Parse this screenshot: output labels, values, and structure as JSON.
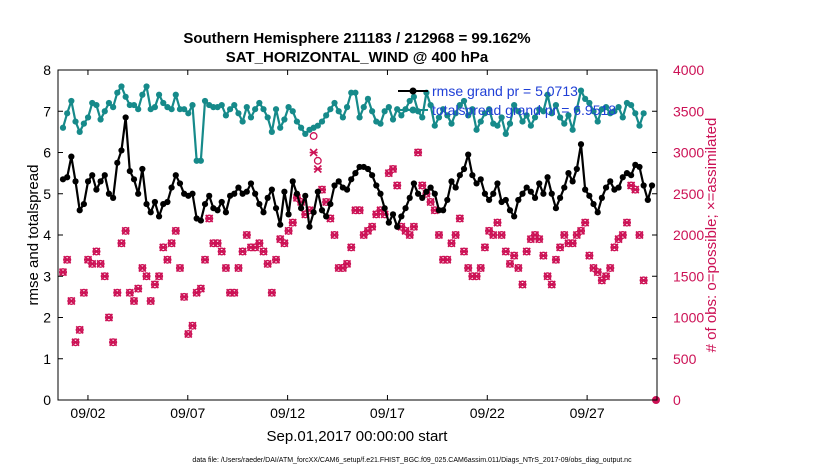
{
  "chart_data": {
    "type": "line",
    "title": "Southern Hemisphere 211183 / 212968 = 99.162%",
    "subtitle": "SAT_HORIZONTAL_WIND @ 400 hPa",
    "xlabel": "Sep.01,2017 00:00:00 start",
    "ylabel_left": "rmse and totalspread",
    "ylabel_right": "# of obs: o=possible; ×=assimilated",
    "footnote": "data file: /Users/raeder/DAI/ATM_forcXX/CAM6_setup/f.e21.FHIST_BGC.f09_025.CAM6assim.011/Diags_NTrS_2017-09/obs_diag_output.nc",
    "xlim": [
      0.5,
      30.5
    ],
    "ylim_left": [
      0,
      8
    ],
    "ylim_right": [
      0,
      4000
    ],
    "x_ticks": [
      {
        "value": 2,
        "label": "09/02"
      },
      {
        "value": 7,
        "label": "09/07"
      },
      {
        "value": 12,
        "label": "09/12"
      },
      {
        "value": 17,
        "label": "09/17"
      },
      {
        "value": 22,
        "label": "09/22"
      },
      {
        "value": 27,
        "label": "09/27"
      }
    ],
    "y_ticks_left": [
      "0",
      "1",
      "2",
      "3",
      "4",
      "5",
      "6",
      "7",
      "8"
    ],
    "y_ticks_right": [
      "0",
      "500",
      "1000",
      "1500",
      "2000",
      "2500",
      "3000",
      "3500",
      "4000"
    ],
    "colors": {
      "rmse": "#000000",
      "spread": "#168a8a",
      "obs": "#cc1155",
      "axis_right": "#cc1155",
      "legend_text": "#1f3fd6"
    },
    "series": [
      {
        "name": "rmse",
        "legend": "rmse grand pr = 5.0713",
        "axis": "left",
        "values": [
          5.35,
          5.4,
          5.9,
          5.3,
          4.6,
          4.75,
          5.3,
          5.45,
          5.1,
          5.3,
          5.45,
          5.0,
          4.9,
          5.75,
          6.05,
          6.85,
          5.55,
          5.35,
          5.0,
          5.6,
          4.75,
          4.55,
          4.8,
          4.45,
          4.75,
          4.8,
          5.15,
          5.45,
          5.25,
          5.0,
          4.95,
          5.0,
          4.4,
          4.35,
          4.75,
          4.95,
          4.65,
          4.6,
          4.8,
          4.55,
          4.95,
          5.0,
          5.15,
          5.0,
          5.05,
          5.25,
          5.0,
          4.75,
          4.55,
          4.9,
          5.1,
          4.65,
          4.25,
          5.05,
          4.5,
          5.3,
          5.0,
          4.65,
          4.95,
          4.2,
          4.55,
          5.05,
          4.6,
          4.45,
          4.75,
          5.2,
          5.3,
          5.15,
          5.1,
          5.35,
          5.5,
          5.65,
          5.65,
          5.6,
          5.45,
          5.2,
          5.0,
          4.65,
          4.3,
          4.5,
          4.2,
          4.45,
          4.65,
          4.9,
          5.25,
          5.0,
          4.9,
          5.05,
          5.15,
          5.0,
          4.6,
          4.6,
          4.85,
          5.3,
          5.15,
          5.45,
          5.6,
          5.95,
          5.45,
          5.25,
          5.35,
          5.0,
          4.85,
          5.0,
          5.25,
          4.8,
          4.85,
          4.6,
          4.45,
          4.85,
          5.0,
          5.15,
          5.05,
          4.9,
          5.25,
          5.0,
          5.4,
          5.0,
          4.65,
          4.9,
          5.15,
          5.5,
          5.3,
          5.6,
          6.2,
          5.1,
          4.95,
          4.75,
          4.55,
          4.9,
          5.15,
          5.3,
          5.1,
          5.15,
          5.4,
          5.5,
          5.45,
          5.7,
          5.65,
          5.2,
          4.85,
          5.2
        ]
      },
      {
        "name": "totalspread",
        "legend": "totalspread grand pr = 6.9518",
        "axis": "left",
        "values": [
          6.6,
          6.95,
          7.25,
          6.75,
          6.5,
          6.7,
          6.85,
          7.2,
          7.15,
          6.8,
          7.0,
          7.2,
          7.1,
          7.45,
          7.6,
          7.35,
          7.15,
          7.15,
          7.05,
          7.4,
          7.6,
          7.05,
          7.1,
          7.4,
          7.2,
          7.1,
          7.05,
          7.4,
          7.05,
          7.05,
          6.95,
          7.15,
          5.8,
          5.8,
          7.25,
          7.15,
          7.1,
          7.1,
          7.15,
          6.9,
          7.05,
          7.15,
          6.95,
          6.75,
          7.1,
          6.85,
          7.05,
          7.2,
          7.05,
          6.85,
          6.5,
          7.05,
          6.6,
          6.8,
          7.1,
          7.0,
          6.75,
          6.6,
          6.45,
          6.55,
          6.6,
          6.65,
          6.75,
          6.9,
          7.05,
          7.2,
          7.0,
          6.85,
          7.1,
          7.45,
          7.45,
          6.85,
          7.1,
          7.3,
          7.0,
          6.75,
          6.7,
          7.0,
          7.1,
          6.8,
          7.05,
          6.9,
          7.05,
          7.25,
          7.35,
          7.0,
          6.85,
          7.45,
          7.15,
          6.65,
          6.85,
          7.05,
          6.9,
          6.7,
          6.95,
          7.15,
          7.25,
          6.9,
          7.05,
          6.55,
          6.75,
          6.95,
          7.05,
          6.7,
          6.65,
          6.85,
          6.45,
          6.7,
          7.15,
          7.0,
          6.75,
          6.9,
          6.65,
          6.85,
          7.05,
          7.0,
          7.4,
          6.95,
          7.15,
          6.85,
          6.7,
          6.9,
          6.55,
          7.05,
          7.5,
          7.3,
          7.2,
          7.0,
          6.75,
          7.05,
          7.1,
          6.95,
          7.0,
          7.1,
          6.85,
          7.2,
          7.15,
          6.95,
          6.65,
          6.95
        ]
      },
      {
        "name": "obs_possible",
        "axis": "right",
        "values": [
          1550,
          1700,
          1200,
          700,
          850,
          1300,
          1700,
          1650,
          1800,
          1650,
          1500,
          1000,
          700,
          1300,
          1900,
          2050,
          1300,
          1200,
          1350,
          1600,
          1500,
          1200,
          1400,
          1500,
          1850,
          1700,
          1900,
          2050,
          1600,
          1250,
          800,
          900,
          1300,
          1350,
          1700,
          2200,
          1900,
          1900,
          1800,
          1600,
          1300,
          1300,
          1600,
          1800,
          2000,
          1850,
          1850,
          1900,
          1800,
          1650,
          1300,
          1700,
          1950,
          1900,
          2050,
          2150,
          2450,
          2400,
          2250,
          2300,
          3200,
          2900,
          2550,
          2400,
          2200,
          2000,
          1600,
          1600,
          1650,
          1850,
          2300,
          2300,
          2000,
          2050,
          2100,
          2250,
          2300,
          2250,
          2750,
          2800,
          2600,
          2100,
          2050,
          2000,
          2100,
          3000,
          2600,
          2500,
          2400,
          2300,
          2000,
          1700,
          1700,
          1900,
          2000,
          2200,
          1800,
          1600,
          1500,
          1500,
          1600,
          1850,
          2050,
          2000,
          2150,
          2000,
          1800,
          1650,
          1750,
          1600,
          1400,
          1800,
          1950,
          2000,
          1950,
          1750,
          1500,
          1400,
          1700,
          1850,
          2000,
          1900,
          1900,
          2000,
          2050,
          2150,
          1750,
          1600,
          1550,
          1450,
          1500,
          1600,
          1850,
          1950,
          2000,
          2150,
          2600,
          2550,
          2000,
          1450
        ]
      },
      {
        "name": "obs_assimilated",
        "axis": "right",
        "values": [
          1550,
          1700,
          1200,
          700,
          850,
          1300,
          1700,
          1650,
          1800,
          1650,
          1500,
          1000,
          700,
          1300,
          1900,
          2050,
          1300,
          1200,
          1350,
          1600,
          1500,
          1200,
          1400,
          1500,
          1850,
          1700,
          1900,
          2050,
          1600,
          1250,
          800,
          900,
          1300,
          1350,
          1700,
          2200,
          1900,
          1900,
          1800,
          1600,
          1300,
          1300,
          1600,
          1800,
          2000,
          1850,
          1850,
          1900,
          1800,
          1650,
          1300,
          1700,
          1950,
          1900,
          2050,
          2150,
          2450,
          2400,
          2250,
          2300,
          3000,
          2800,
          2550,
          2400,
          2200,
          2000,
          1600,
          1600,
          1650,
          1850,
          2300,
          2300,
          2000,
          2050,
          2100,
          2250,
          2300,
          2250,
          2750,
          2800,
          2600,
          2100,
          2050,
          2000,
          2100,
          3000,
          2600,
          2500,
          2400,
          2300,
          2000,
          1700,
          1700,
          1900,
          2000,
          2200,
          1800,
          1600,
          1500,
          1500,
          1600,
          1850,
          2050,
          2000,
          2150,
          2000,
          1800,
          1650,
          1750,
          1600,
          1400,
          1800,
          1950,
          2000,
          1950,
          1750,
          1500,
          1400,
          1700,
          1850,
          2000,
          1900,
          1900,
          2000,
          2050,
          2150,
          1750,
          1600,
          1550,
          1450,
          1500,
          1600,
          1850,
          1950,
          2000,
          2150,
          2600,
          2550,
          2000,
          1450
        ]
      }
    ],
    "last_point_possible": 0
  }
}
